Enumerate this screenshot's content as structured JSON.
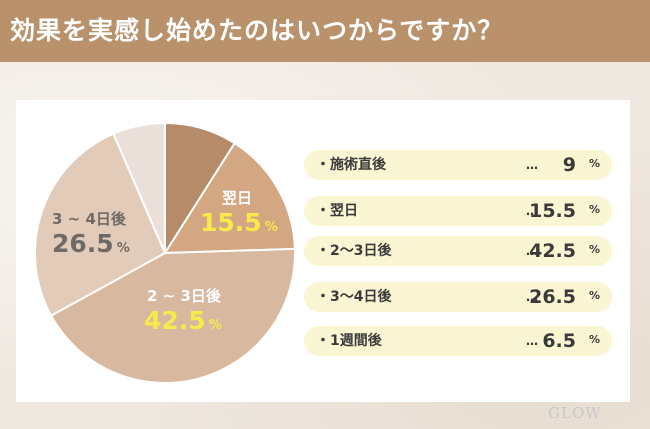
{
  "title": "効果を実感し始めたのはいつからですか？",
  "chart_data": {
    "type": "pie",
    "categories": [
      "施術直後",
      "翌日",
      "2〜3日後",
      "3〜4日後",
      "1週間後"
    ],
    "values": [
      9,
      15.5,
      42.5,
      26.5,
      6.5
    ],
    "unit": "%",
    "colors": [
      "#b58b69",
      "#d2a782",
      "#d8b89e",
      "#e2cbb9",
      "#eae0d9"
    ]
  },
  "pie_labels": [
    {
      "category": "翌日",
      "value": "15.5",
      "unit": "%"
    },
    {
      "category": "2 ~ 3日後",
      "value": "42.5",
      "unit": "%"
    },
    {
      "category": "3 ~ 4日後",
      "value": "26.5",
      "unit": "%"
    }
  ],
  "legend": [
    {
      "label": "・施術直後",
      "dots": "…",
      "value": "9",
      "unit": "%"
    },
    {
      "label": "・翌日",
      "dots": "…",
      "value": "15.5",
      "unit": "%"
    },
    {
      "label": "・2〜3日後",
      "dots": "…",
      "value": "42.5",
      "unit": "%"
    },
    {
      "label": "・3〜4日後",
      "dots": "…",
      "value": "26.5",
      "unit": "%"
    },
    {
      "label": "・1週間後",
      "dots": "…",
      "value": "6.5",
      "unit": "%"
    }
  ],
  "colors": {
    "header": "#b9926c",
    "highlight": "#f7ea4a",
    "pill": "#faf5d2"
  },
  "logo": "GLOW"
}
